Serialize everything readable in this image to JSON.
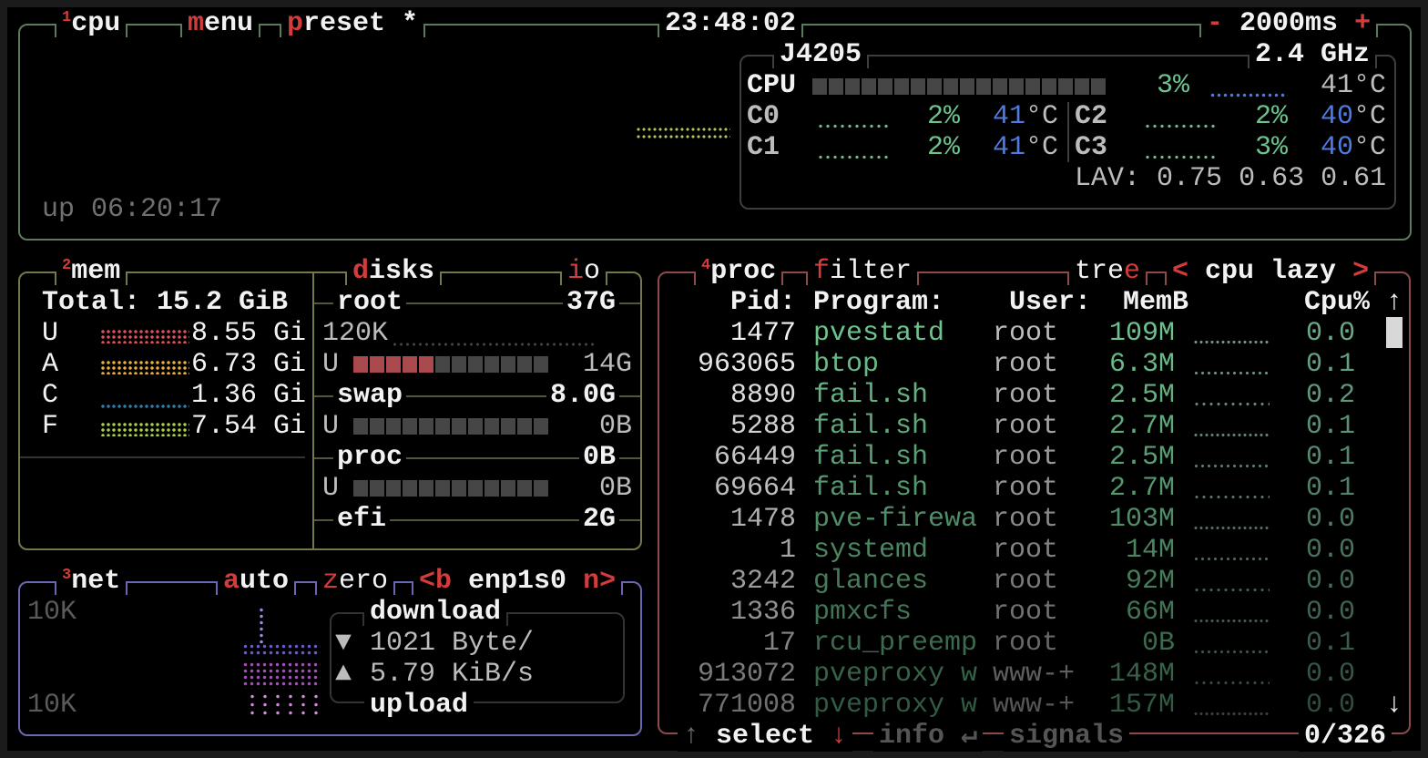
{
  "cpu": {
    "number": "1",
    "title": "cpu",
    "menu_key": "m",
    "menu_rest": "enu",
    "preset_key": "p",
    "preset_rest": "reset *",
    "clock": "23:48:02",
    "interval_minus": "-",
    "interval": "2000ms",
    "interval_plus": "+",
    "uptime": "up 06:20:17",
    "model": "J4205",
    "freq": "2.4 GHz",
    "total_label": "CPU",
    "total_percent": "3%",
    "total_percent_value": 3,
    "total_temp": "41°C",
    "cores": [
      {
        "label": "C0",
        "percent": "2%",
        "temp_num": "41",
        "temp_unit": "°C"
      },
      {
        "label": "C1",
        "percent": "2%",
        "temp_num": "41",
        "temp_unit": "°C"
      },
      {
        "label": "C2",
        "percent": "2%",
        "temp_num": "40",
        "temp_unit": "°C"
      },
      {
        "label": "C3",
        "percent": "3%",
        "temp_num": "40",
        "temp_unit": "°C"
      }
    ],
    "lav_label": "LAV:",
    "lav": [
      "0.75",
      "0.63",
      "0.61"
    ]
  },
  "mem": {
    "number": "2",
    "title": "mem",
    "total": "Total: 15.2 GiB",
    "rows": [
      {
        "label": "U",
        "value": "8.55 Gi",
        "color": "#e0505a"
      },
      {
        "label": "A",
        "value": "6.73 Gi",
        "color": "#e8b03a"
      },
      {
        "label": "C",
        "value": "1.36 Gi",
        "color": "#2f7fa8"
      },
      {
        "label": "F",
        "value": "7.54 Gi",
        "color": "#a8d048"
      }
    ]
  },
  "disks": {
    "title_key": "d",
    "title_rest": "isks",
    "io_key": "i",
    "io_rest": "o",
    "root": {
      "name": "root",
      "size": "37G",
      "io": "120K",
      "used_label": "U",
      "used": "14G",
      "used_fraction": 0.38
    },
    "swap": {
      "name": "swap",
      "size": "8.0G",
      "used_label": "U",
      "used": "0B",
      "used_fraction": 0
    },
    "proc": {
      "name": "proc",
      "size": "0B",
      "used_label": "U",
      "used": "0B",
      "used_fraction": 0
    },
    "efi": {
      "name": "efi",
      "size": "2G"
    }
  },
  "net": {
    "number": "3",
    "title": "net",
    "auto_key": "a",
    "auto_rest": "uto",
    "zero_key": "z",
    "zero_rest": "ero",
    "prev_key": "<b",
    "interface": "enp1s0",
    "next_key": "n>",
    "scale_top": "10K",
    "scale_bottom": "10K",
    "download_label": "download",
    "download_icon": "▼",
    "download_rate": "1021 Byte/",
    "upload_icon": "▲",
    "upload_rate": "5.79 KiB/s",
    "upload_label": "upload"
  },
  "proc": {
    "number": "4",
    "title": "proc",
    "filter_key": "f",
    "filter_rest": "ilter",
    "tree_rest": "tre",
    "tree_key": "e",
    "sort_prev": "<",
    "sort": "cpu lazy",
    "sort_next": ">",
    "headers": {
      "pid": "Pid:",
      "program": "Program:",
      "user": "User:",
      "mem": "MemB",
      "cpu": "Cpu%"
    },
    "scroll_up": "↑",
    "scroll_down": "↓",
    "rows": [
      {
        "pid": "1477",
        "program": "pvestatd",
        "user": "root",
        "mem": "109M",
        "cpu": "0.0"
      },
      {
        "pid": "963065",
        "program": "btop",
        "user": "root",
        "mem": "6.3M",
        "cpu": "0.1"
      },
      {
        "pid": "8890",
        "program": "fail.sh",
        "user": "root",
        "mem": "2.5M",
        "cpu": "0.2"
      },
      {
        "pid": "5288",
        "program": "fail.sh",
        "user": "root",
        "mem": "2.7M",
        "cpu": "0.1"
      },
      {
        "pid": "66449",
        "program": "fail.sh",
        "user": "root",
        "mem": "2.5M",
        "cpu": "0.1"
      },
      {
        "pid": "69664",
        "program": "fail.sh",
        "user": "root",
        "mem": "2.7M",
        "cpu": "0.1"
      },
      {
        "pid": "1478",
        "program": "pve-firewa",
        "user": "root",
        "mem": "103M",
        "cpu": "0.0"
      },
      {
        "pid": "1",
        "program": "systemd",
        "user": "root",
        "mem": "14M",
        "cpu": "0.0"
      },
      {
        "pid": "3242",
        "program": "glances",
        "user": "root",
        "mem": "92M",
        "cpu": "0.0"
      },
      {
        "pid": "1336",
        "program": "pmxcfs",
        "user": "root",
        "mem": "66M",
        "cpu": "0.0"
      },
      {
        "pid": "17",
        "program": "rcu_preemp",
        "user": "root",
        "mem": "0B",
        "cpu": "0.1"
      },
      {
        "pid": "913072",
        "program": "pveproxy w",
        "user": "www-+",
        "mem": "148M",
        "cpu": "0.0"
      },
      {
        "pid": "771008",
        "program": "pveproxy w",
        "user": "www-+",
        "mem": "157M",
        "cpu": "0.0"
      }
    ],
    "footer": {
      "up_arrow": "↑",
      "select": "select",
      "down_arrow": "↓",
      "info": "info",
      "enter": "↵",
      "signals": "signals",
      "count": "0/326"
    }
  },
  "colors": {
    "cpu_border": "#5c7a5c",
    "mem_border": "#77774a",
    "net_border": "#6a68b0",
    "proc_border": "#8c4a48",
    "accent_red": "#d43c3c",
    "value_green": "#6ec28e",
    "temp_blue": "#4f7ae0"
  }
}
